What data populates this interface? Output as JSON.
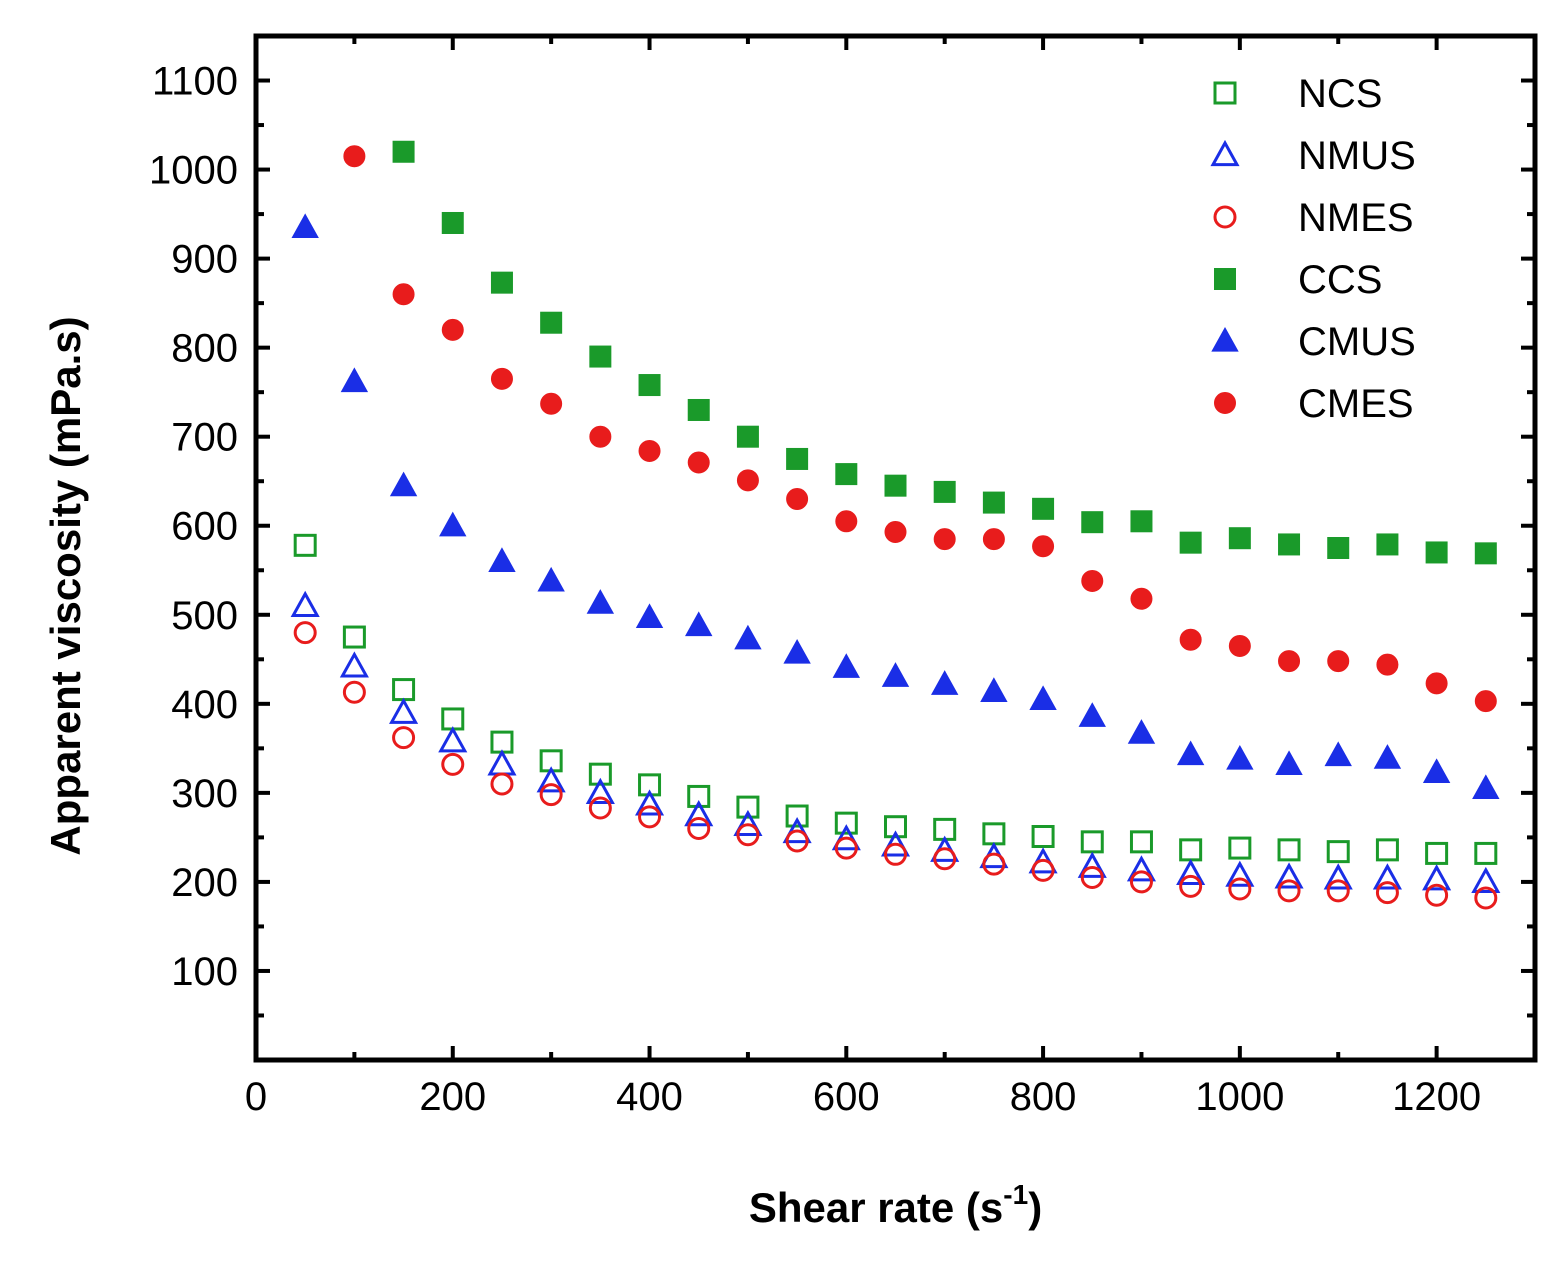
{
  "chart_data": {
    "type": "scatter",
    "title": "",
    "xlabel": "Shear rate (s",
    "xlabel_superscript": "-1",
    "xlabel_suffix": ")",
    "ylabel": "Apparent viscosity (mPa.s)",
    "xlim": [
      0,
      1300
    ],
    "ylim": [
      0,
      1150
    ],
    "x_ticks": [
      0,
      200,
      400,
      600,
      800,
      1000,
      1200
    ],
    "y_ticks": [
      100,
      200,
      300,
      400,
      500,
      600,
      700,
      800,
      900,
      1000,
      1100
    ],
    "legend_position": "top-right",
    "grid": false,
    "x": [
      50,
      100,
      150,
      200,
      250,
      300,
      350,
      400,
      450,
      500,
      550,
      600,
      650,
      700,
      750,
      800,
      850,
      900,
      950,
      1000,
      1050,
      1100,
      1150,
      1200,
      1250
    ],
    "series": [
      {
        "name": "NCS",
        "marker": "square-open",
        "color": "#1a9a2a",
        "values": [
          578,
          475,
          416,
          383,
          357,
          336,
          321,
          309,
          296,
          284,
          274,
          266,
          262,
          259,
          254,
          251,
          245,
          245,
          236,
          238,
          236,
          234,
          236,
          232,
          232
        ]
      },
      {
        "name": "NMUS",
        "marker": "triangle-open",
        "color": "#1a2ee6",
        "values": [
          510,
          442,
          390,
          358,
          332,
          313,
          300,
          287,
          275,
          264,
          256,
          248,
          241,
          235,
          228,
          222,
          217,
          213,
          209,
          207,
          205,
          204,
          204,
          203,
          200
        ]
      },
      {
        "name": "NMES",
        "marker": "circle-open",
        "color": "#e81c1c",
        "values": [
          480,
          413,
          362,
          332,
          310,
          298,
          283,
          273,
          260,
          253,
          246,
          238,
          231,
          226,
          220,
          213,
          205,
          200,
          195,
          192,
          190,
          190,
          188,
          185,
          182
        ]
      },
      {
        "name": "CCS",
        "marker": "square-filled",
        "color": "#1a9a2a",
        "values": [
          null,
          null,
          1020,
          940,
          873,
          828,
          790,
          758,
          730,
          700,
          675,
          658,
          645,
          638,
          626,
          619,
          604,
          605,
          581,
          586,
          579,
          575,
          579,
          570,
          569
        ]
      },
      {
        "name": "CMUS",
        "marker": "triangle-filled",
        "color": "#1a2ee6",
        "values": [
          935,
          762,
          645,
          600,
          560,
          538,
          513,
          497,
          488,
          473,
          457,
          441,
          431,
          422,
          414,
          405,
          386,
          367,
          343,
          338,
          332,
          342,
          339,
          323,
          305
        ]
      },
      {
        "name": "CMES",
        "marker": "circle-filled",
        "color": "#e81c1c",
        "values": [
          null,
          1015,
          860,
          820,
          765,
          737,
          700,
          684,
          671,
          651,
          630,
          605,
          593,
          585,
          585,
          577,
          538,
          518,
          472,
          465,
          448,
          448,
          444,
          423,
          403
        ]
      }
    ]
  }
}
